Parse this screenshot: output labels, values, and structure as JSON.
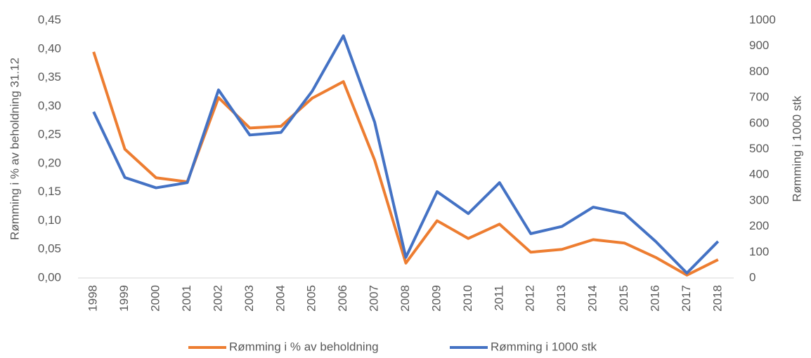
{
  "chart_data": {
    "type": "line",
    "categories": [
      "1998",
      "1999",
      "2000",
      "2001",
      "2002",
      "2003",
      "2004",
      "2005",
      "2006",
      "2007",
      "2008",
      "2009",
      "2010",
      "2011",
      "2012",
      "2013",
      "2014",
      "2015",
      "2016",
      "2017",
      "2018"
    ],
    "ylabel": "Rømming i % av beholdning 31.12",
    "y2label": "Rømming i 1000 stk",
    "ylim": [
      0,
      0.45
    ],
    "yticks": [
      {
        "value": 0,
        "label": "0,00"
      },
      {
        "value": 0.05,
        "label": "0,05"
      },
      {
        "value": 0.1,
        "label": "0,10"
      },
      {
        "value": 0.15,
        "label": "0,15"
      },
      {
        "value": 0.2,
        "label": "0,20"
      },
      {
        "value": 0.25,
        "label": "0,25"
      },
      {
        "value": 0.3,
        "label": "0,30"
      },
      {
        "value": 0.35,
        "label": "0,35"
      },
      {
        "value": 0.4,
        "label": "0,40"
      },
      {
        "value": 0.45,
        "label": "0,45"
      }
    ],
    "y2lim": [
      0,
      1000
    ],
    "y2ticks": [
      0,
      100,
      200,
      300,
      400,
      500,
      600,
      700,
      800,
      900,
      1000
    ],
    "grid": false,
    "legend": "bottom",
    "series": [
      {
        "name": "Rømming i % av beholdning",
        "color": "#ED7D31",
        "values": [
          0.395,
          0.225,
          0.175,
          0.168,
          0.315,
          0.262,
          0.265,
          0.314,
          0.343,
          0.206,
          0.026,
          0.1,
          0.069,
          0.094,
          0.045,
          0.05,
          0.067,
          0.061,
          0.036,
          0.005,
          0.032
        ]
      },
      {
        "name": "Rømming i 1000 stk",
        "color": "#4472C4",
        "axis": "y2",
        "values": [
          645,
          390,
          350,
          370,
          730,
          555,
          565,
          725,
          940,
          605,
          80,
          335,
          250,
          370,
          172,
          200,
          275,
          250,
          142,
          19,
          142
        ]
      }
    ]
  }
}
